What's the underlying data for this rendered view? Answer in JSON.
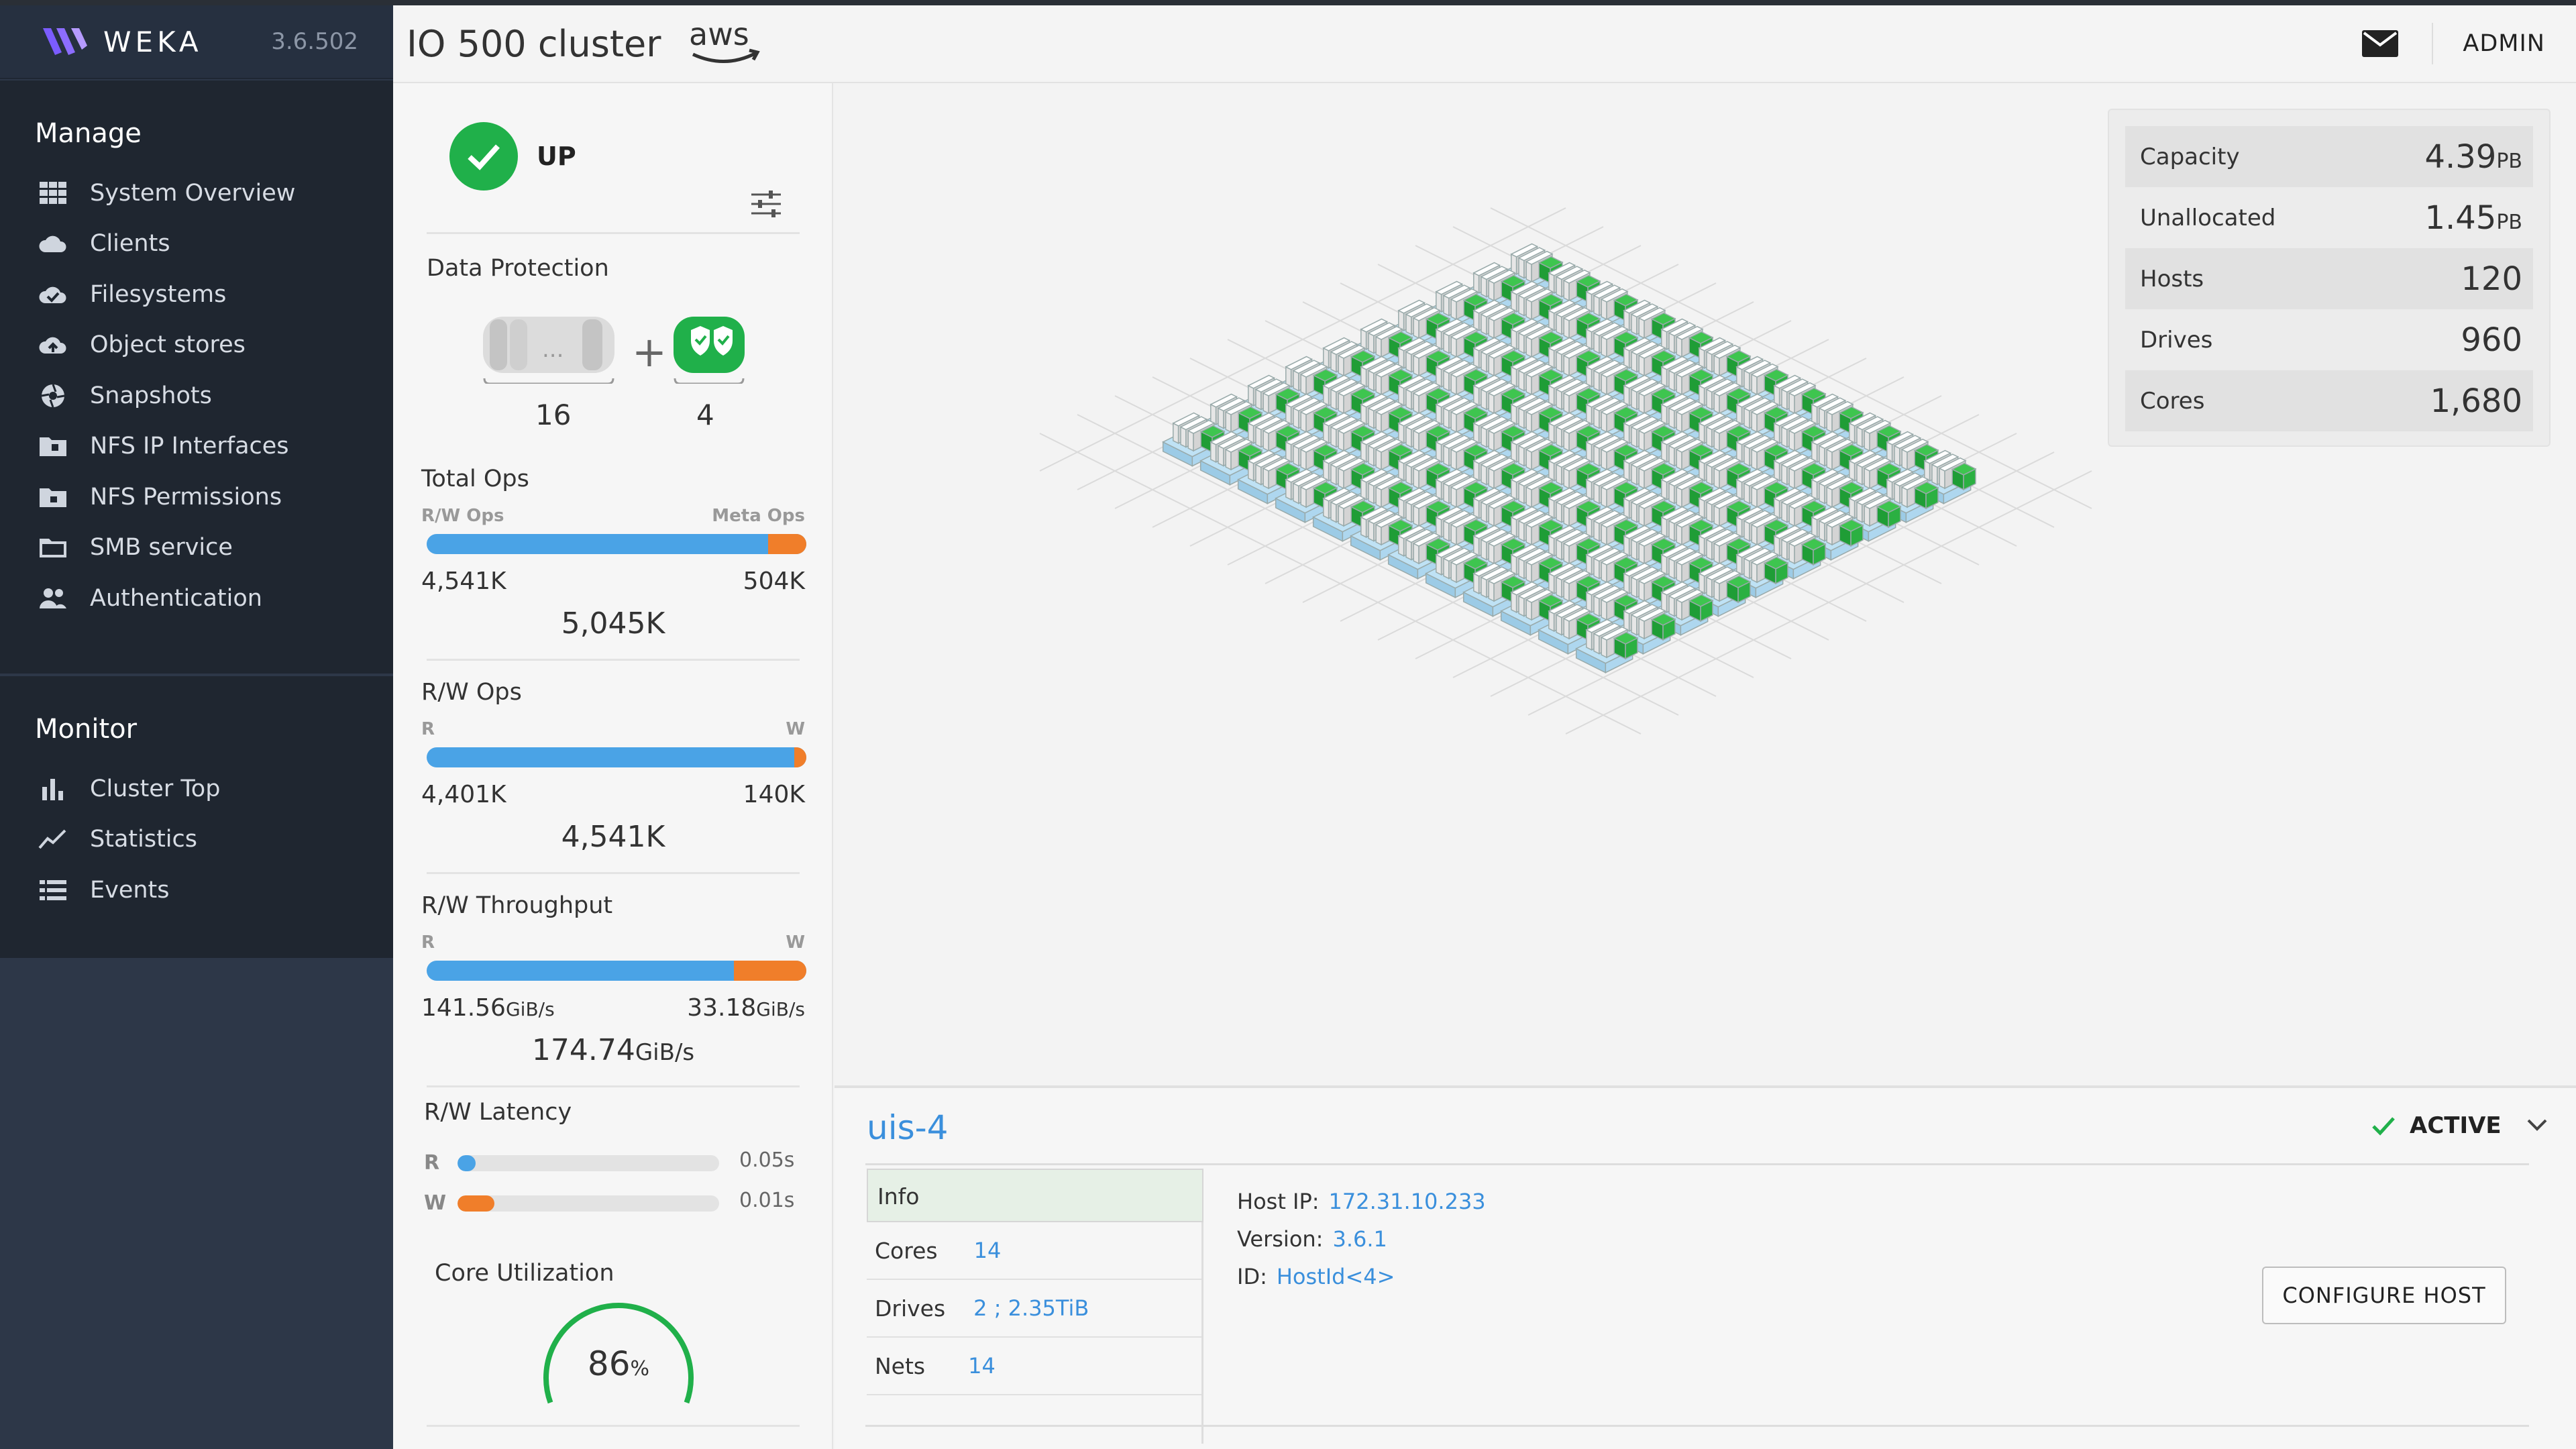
{
  "app": {
    "brand": "WEKA",
    "version": "3.6.502"
  },
  "header": {
    "cluster_name": "IO 500 cluster",
    "cloud_logo": "aws",
    "user": "ADMIN",
    "mail_icon": "mail-icon"
  },
  "sidebar": {
    "manage_title": "Manage",
    "manage_items": [
      {
        "label": "System Overview",
        "icon": "grid-icon"
      },
      {
        "label": "Clients",
        "icon": "cloud-icon"
      },
      {
        "label": "Filesystems",
        "icon": "cloud-check-icon"
      },
      {
        "label": "Object stores",
        "icon": "cloud-upload-icon"
      },
      {
        "label": "Snapshots",
        "icon": "aperture-icon"
      },
      {
        "label": "NFS IP Interfaces",
        "icon": "folder-network-icon"
      },
      {
        "label": "NFS Permissions",
        "icon": "folder-lock-icon"
      },
      {
        "label": "SMB service",
        "icon": "folder-icon"
      },
      {
        "label": "Authentication",
        "icon": "users-icon"
      }
    ],
    "monitor_title": "Monitor",
    "monitor_items": [
      {
        "label": "Cluster Top",
        "icon": "bar-chart-icon"
      },
      {
        "label": "Statistics",
        "icon": "line-chart-icon"
      },
      {
        "label": "Events",
        "icon": "list-icon"
      }
    ]
  },
  "status": {
    "label": "UP",
    "color": "#20b04a"
  },
  "data_protection": {
    "title": "Data Protection",
    "data_drives": "16",
    "parity_drives": "4"
  },
  "total_ops": {
    "title": "Total Ops",
    "left_label": "R/W Ops",
    "right_label": "Meta Ops",
    "left_value": "4,541K",
    "right_value": "504K",
    "total": "5,045K",
    "right_fraction": 0.1
  },
  "rw_ops": {
    "title": "R/W Ops",
    "left_label": "R",
    "right_label": "W",
    "left_value": "4,401K",
    "right_value": "140K",
    "total": "4,541K",
    "right_fraction": 0.031
  },
  "rw_throughput": {
    "title": "R/W Throughput",
    "left_label": "R",
    "right_label": "W",
    "left_value": "141.56",
    "left_unit": "GiB/s",
    "right_value": "33.18",
    "right_unit": "GiB/s",
    "total": "174.74",
    "total_unit": "GiB/s",
    "right_fraction": 0.19
  },
  "rw_latency": {
    "title": "R/W Latency",
    "r_label": "R",
    "w_label": "W",
    "r_value": "0.05s",
    "w_value": "0.01s",
    "r_fraction": 0.07,
    "w_fraction": 0.14
  },
  "core_util": {
    "title": "Core Utilization",
    "value": "86",
    "unit": "%",
    "fraction": 0.86
  },
  "colors": {
    "read": "#4aa3e6",
    "write": "#f07e2a",
    "accent": "#3a8fdc",
    "green": "#20b04a"
  },
  "cluster_stats": [
    {
      "label": "Capacity",
      "value": "4.39",
      "unit": "PB"
    },
    {
      "label": "Unallocated",
      "value": "1.45",
      "unit": "PB"
    },
    {
      "label": "Hosts",
      "value": "120",
      "unit": ""
    },
    {
      "label": "Drives",
      "value": "960",
      "unit": ""
    },
    {
      "label": "Cores",
      "value": "1,680",
      "unit": ""
    }
  ],
  "host": {
    "name": "uis-4",
    "state": "ACTIVE",
    "info_tab": "Info",
    "rows": [
      {
        "label": "Cores",
        "value": "14"
      },
      {
        "label": "Drives",
        "value": "2 ; 2.35TiB"
      },
      {
        "label": "Nets",
        "value": "14"
      }
    ],
    "host_ip_label": "Host IP:",
    "host_ip": "172.31.10.233",
    "version_label": "Version:",
    "version": "3.6.1",
    "id_label": "ID:",
    "id": "HostId<4>",
    "configure_label": "CONFIGURE HOST"
  }
}
